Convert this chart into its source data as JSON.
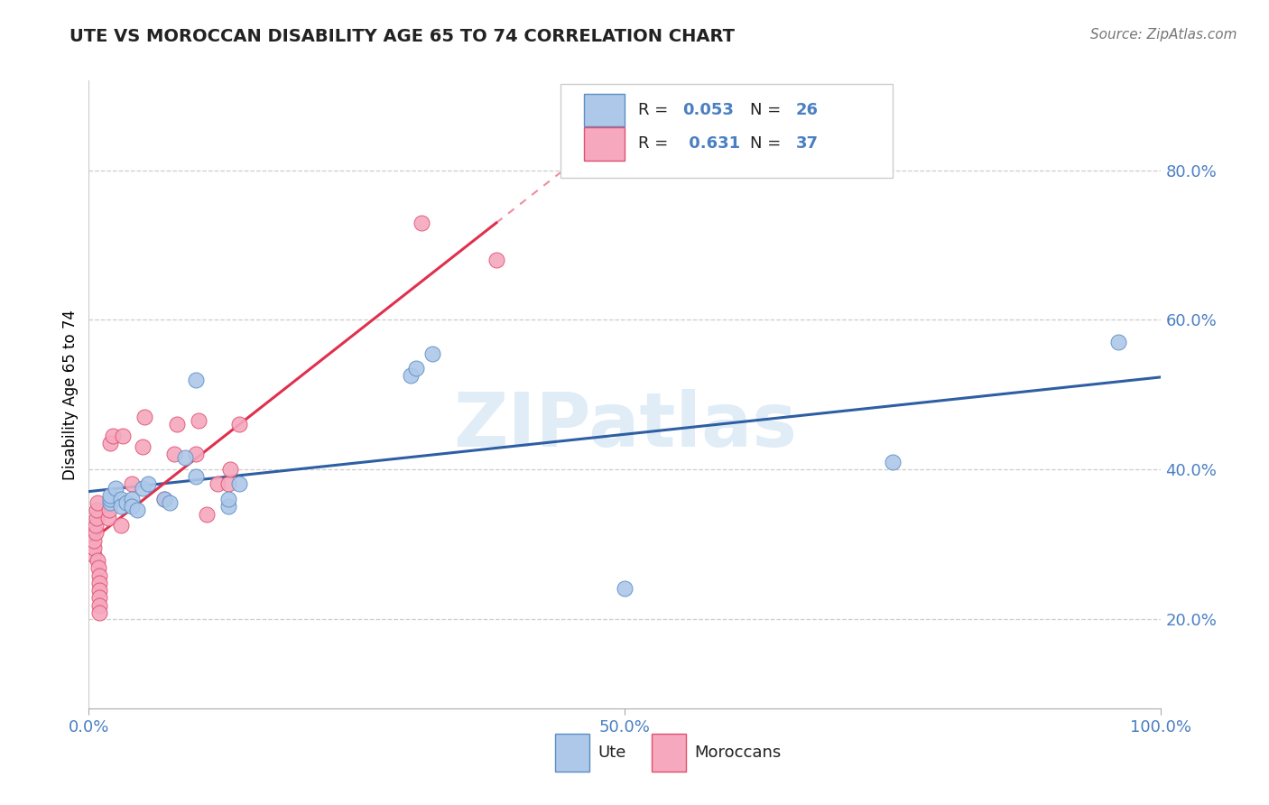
{
  "title": "UTE VS MOROCCAN DISABILITY AGE 65 TO 74 CORRELATION CHART",
  "source": "Source: ZipAtlas.com",
  "ylabel": "Disability Age 65 to 74",
  "ute_R": "0.053",
  "ute_N": "26",
  "moroccan_R": "0.631",
  "moroccan_N": "37",
  "xlim": [
    0.0,
    1.0
  ],
  "ylim": [
    0.08,
    0.92
  ],
  "xticks": [
    0.0,
    0.5,
    1.0
  ],
  "xtick_labels": [
    "0.0%",
    "50.0%",
    "100.0%"
  ],
  "ytick_labels": [
    "20.0%",
    "40.0%",
    "60.0%",
    "80.0%"
  ],
  "yticks": [
    0.2,
    0.4,
    0.6,
    0.8
  ],
  "ute_color": "#adc8e8",
  "moroccan_color": "#f5a8be",
  "ute_edge_color": "#5b8ec4",
  "moroccan_edge_color": "#e05070",
  "ute_line_color": "#2e5fa3",
  "moroccan_line_color": "#e0304e",
  "watermark": "ZIPatlas",
  "ute_x": [
    0.02,
    0.02,
    0.02,
    0.025,
    0.03,
    0.03,
    0.035,
    0.04,
    0.04,
    0.045,
    0.05,
    0.055,
    0.07,
    0.075,
    0.09,
    0.1,
    0.1,
    0.13,
    0.13,
    0.14,
    0.3,
    0.305,
    0.32,
    0.5,
    0.75,
    0.96
  ],
  "ute_y": [
    0.355,
    0.36,
    0.365,
    0.375,
    0.36,
    0.35,
    0.355,
    0.36,
    0.35,
    0.345,
    0.375,
    0.38,
    0.36,
    0.355,
    0.415,
    0.39,
    0.52,
    0.35,
    0.36,
    0.38,
    0.525,
    0.535,
    0.555,
    0.24,
    0.41,
    0.57
  ],
  "moroccan_x": [
    0.005,
    0.005,
    0.005,
    0.006,
    0.006,
    0.007,
    0.007,
    0.008,
    0.008,
    0.009,
    0.01,
    0.01,
    0.01,
    0.01,
    0.01,
    0.01,
    0.018,
    0.019,
    0.02,
    0.022,
    0.03,
    0.032,
    0.04,
    0.05,
    0.052,
    0.07,
    0.08,
    0.082,
    0.1,
    0.102,
    0.11,
    0.12,
    0.13,
    0.132,
    0.14,
    0.31,
    0.38
  ],
  "moroccan_y": [
    0.285,
    0.295,
    0.305,
    0.315,
    0.325,
    0.335,
    0.345,
    0.355,
    0.278,
    0.268,
    0.258,
    0.248,
    0.238,
    0.228,
    0.218,
    0.208,
    0.335,
    0.345,
    0.435,
    0.445,
    0.325,
    0.445,
    0.38,
    0.43,
    0.47,
    0.36,
    0.42,
    0.46,
    0.42,
    0.465,
    0.34,
    0.38,
    0.38,
    0.4,
    0.46,
    0.73,
    0.68
  ],
  "background_color": "#ffffff",
  "grid_color": "#c8c8c8",
  "tick_color": "#4a7fc1"
}
